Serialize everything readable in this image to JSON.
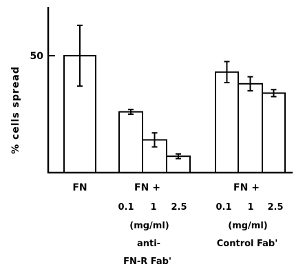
{
  "chart_data": {
    "type": "bar",
    "ylabel": "% cells spread",
    "y_ticks": [
      {
        "value": 50,
        "label": "50"
      }
    ],
    "ylim": [
      0,
      75
    ],
    "error_bars": true,
    "bars": [
      {
        "group": "FN",
        "value": 50,
        "err": 13
      },
      {
        "group": "anti-FN-R Fab'",
        "dose": "0.1",
        "value": 26,
        "err": 1
      },
      {
        "group": "anti-FN-R Fab'",
        "dose": "1",
        "value": 14,
        "err": 3
      },
      {
        "group": "anti-FN-R Fab'",
        "dose": "2.5",
        "value": 7,
        "err": 1
      },
      {
        "group": "Control Fab'",
        "dose": "0.1",
        "value": 43,
        "err": 4.5
      },
      {
        "group": "Control Fab'",
        "dose": "1",
        "value": 38,
        "err": 3
      },
      {
        "group": "Control Fab'",
        "dose": "2.5",
        "value": 34,
        "err": 1.5
      }
    ]
  },
  "labels": {
    "fn": "FN",
    "fn_plus_1": "FN +",
    "fn_plus_2": "FN +",
    "doses_1": [
      "0.1",
      "1",
      "2.5"
    ],
    "doses_2": [
      "0.1",
      "1",
      "2.5"
    ],
    "unit_1": "(mg/ml)",
    "unit_2": "(mg/ml)",
    "group1_line1": "anti-",
    "group1_line2": "FN-R Fab'",
    "group2_line1": "Control Fab'"
  }
}
